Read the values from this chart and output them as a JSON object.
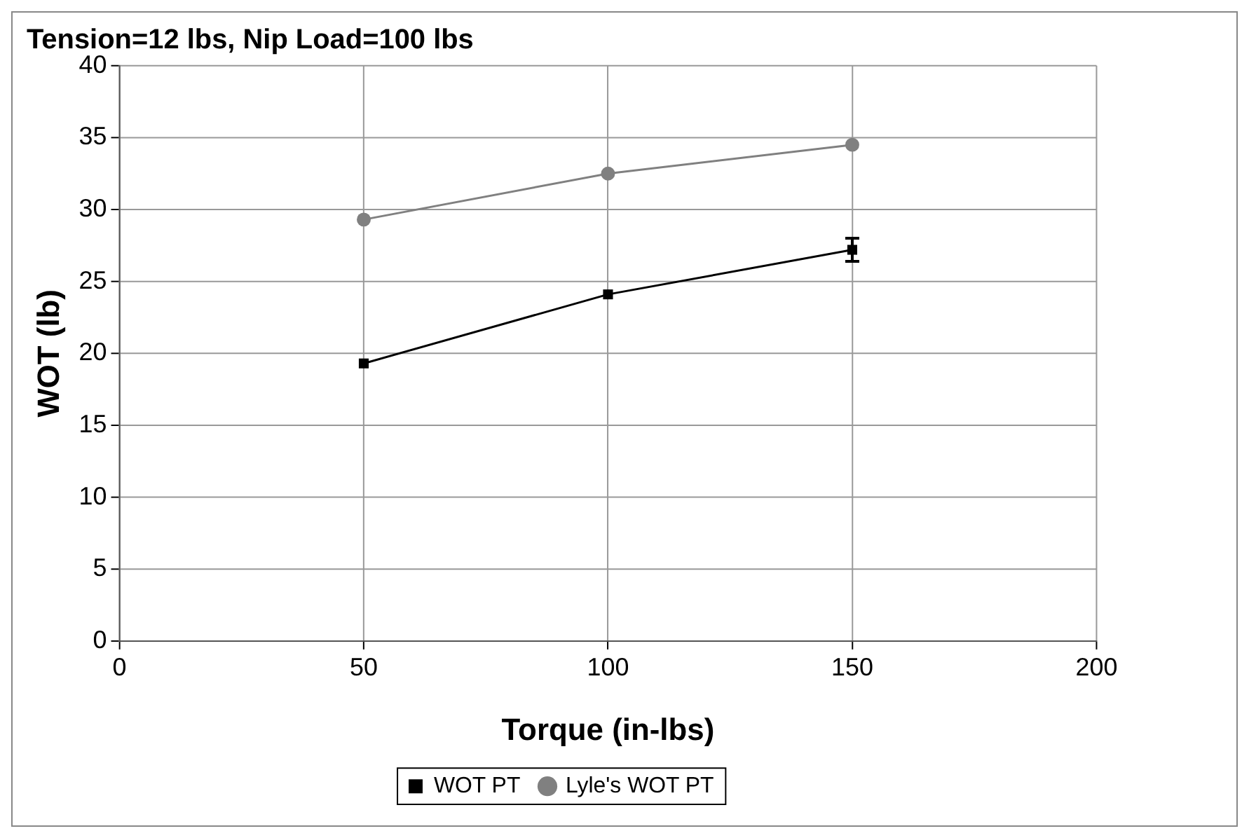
{
  "chart_data": {
    "type": "line",
    "title": "Tension=12 lbs, Nip Load=100 lbs",
    "xlabel": "Torque (in-lbs)",
    "ylabel": "WOT (lb)",
    "x": [
      50,
      100,
      150
    ],
    "series": [
      {
        "name": "WOT PT",
        "color": "#000000",
        "marker": "square",
        "values": [
          19.3,
          24.1,
          27.2
        ],
        "errors": [
          null,
          null,
          0.8
        ]
      },
      {
        "name": "Lyle's WOT PT",
        "color": "#808080",
        "marker": "circle",
        "values": [
          29.3,
          32.5,
          34.5
        ]
      }
    ],
    "xlim": [
      0,
      200
    ],
    "xticks": [
      0,
      50,
      100,
      150,
      200
    ],
    "ylim": [
      0,
      40
    ],
    "yticks": [
      0,
      5,
      10,
      15,
      20,
      25,
      30,
      35,
      40
    ],
    "grid": true,
    "legend": "bottom",
    "line_style": "solid"
  }
}
